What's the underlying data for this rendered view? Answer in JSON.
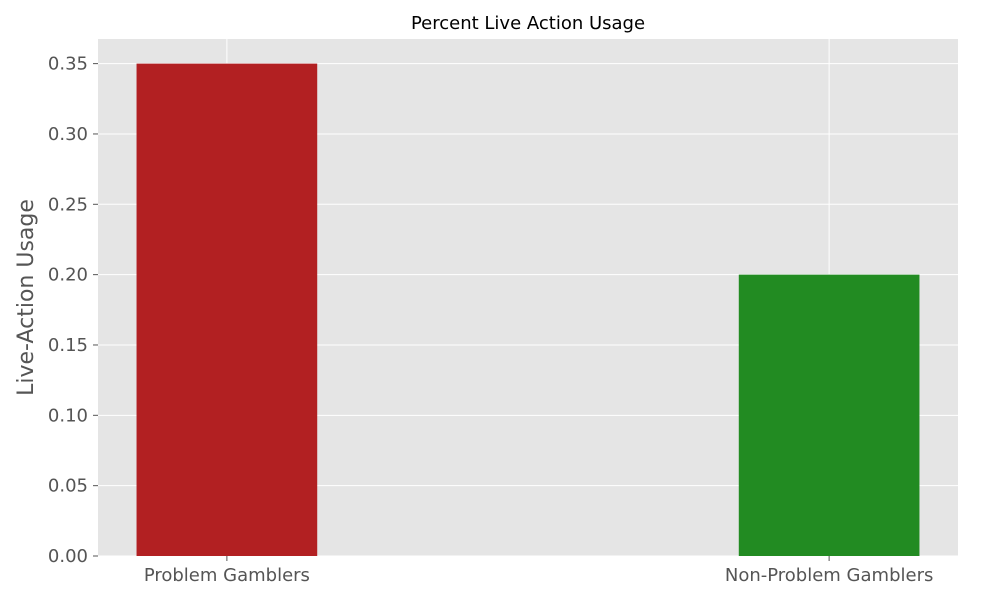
{
  "chart_data": {
    "type": "bar",
    "title": "Percent Live Action Usage",
    "xlabel": "",
    "ylabel": "Live-Action Usage",
    "categories": [
      "Problem Gamblers",
      "Non-Problem Gamblers"
    ],
    "values": [
      0.35,
      0.2
    ],
    "bar_colors": [
      "#b22022",
      "#228b22"
    ],
    "ylim": [
      0,
      0.3675
    ],
    "yticks": [
      "0.00",
      "0.05",
      "0.10",
      "0.15",
      "0.20",
      "0.25",
      "0.30",
      "0.35"
    ],
    "ytick_values": [
      0,
      0.05,
      0.1,
      0.15,
      0.2,
      0.25,
      0.3,
      0.35
    ],
    "grid": true,
    "background_color": "#e5e5e5",
    "grid_color": "#ffffff",
    "legend": "none"
  }
}
